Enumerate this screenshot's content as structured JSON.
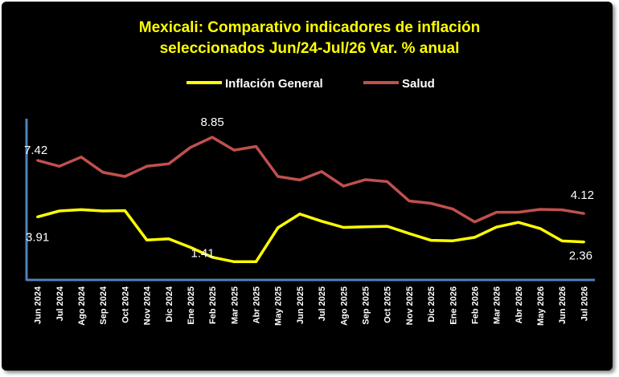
{
  "chart_data": {
    "type": "line",
    "title_line1": "Mexicali: Comparativo indicadores de inflación",
    "title_line2": "seleccionados Jun/24-Jul/26 Var. % anual",
    "legend_position": "top",
    "grid": false,
    "ylim": [
      0,
      10
    ],
    "categories": [
      "Jun 2024",
      "Jul 2024",
      "Ago 2024",
      "Sep 2024",
      "Oct 2024",
      "Nov 2024",
      "Dic 2024",
      "Ene 2025",
      "Feb 2025",
      "Mar 2025",
      "Abr 2025",
      "May 2025",
      "Jun 2025",
      "Jul 2025",
      "Ago 2025",
      "Sep 2025",
      "Oct 2025",
      "Nov 2025",
      "Dic 2025",
      "Ene 2026",
      "Feb 2026",
      "Mar 2026",
      "Abr 2026",
      "May 2026",
      "Jun 2026",
      "Jul 2026"
    ],
    "series": [
      {
        "name": "Inflación General",
        "color": "#ffff00",
        "values": [
          3.91,
          4.28,
          4.36,
          4.28,
          4.3,
          2.48,
          2.55,
          2.02,
          1.41,
          1.13,
          1.13,
          3.24,
          4.09,
          3.64,
          3.26,
          3.3,
          3.33,
          2.88,
          2.46,
          2.43,
          2.64,
          3.28,
          3.57,
          3.19,
          2.42,
          2.36
        ]
      },
      {
        "name": "Salud",
        "color": "#c0504d",
        "values": [
          7.42,
          7.05,
          7.62,
          6.67,
          6.42,
          7.05,
          7.2,
          8.22,
          8.85,
          8.05,
          8.28,
          6.42,
          6.2,
          6.72,
          5.82,
          6.22,
          6.1,
          4.9,
          4.75,
          4.4,
          3.6,
          4.2,
          4.2,
          4.38,
          4.35,
          4.12
        ]
      }
    ],
    "data_labels": [
      {
        "series": 1,
        "index": 0,
        "text": "7.42"
      },
      {
        "series": 1,
        "index": 8,
        "text": "8.85"
      },
      {
        "series": 1,
        "index": 25,
        "text": "4.12"
      },
      {
        "series": 0,
        "index": 0,
        "text": "3.91"
      },
      {
        "series": 0,
        "index": 8,
        "text": "1.41"
      },
      {
        "series": 0,
        "index": 25,
        "text": "2.36"
      }
    ],
    "axis_color": "#4f81bd"
  }
}
